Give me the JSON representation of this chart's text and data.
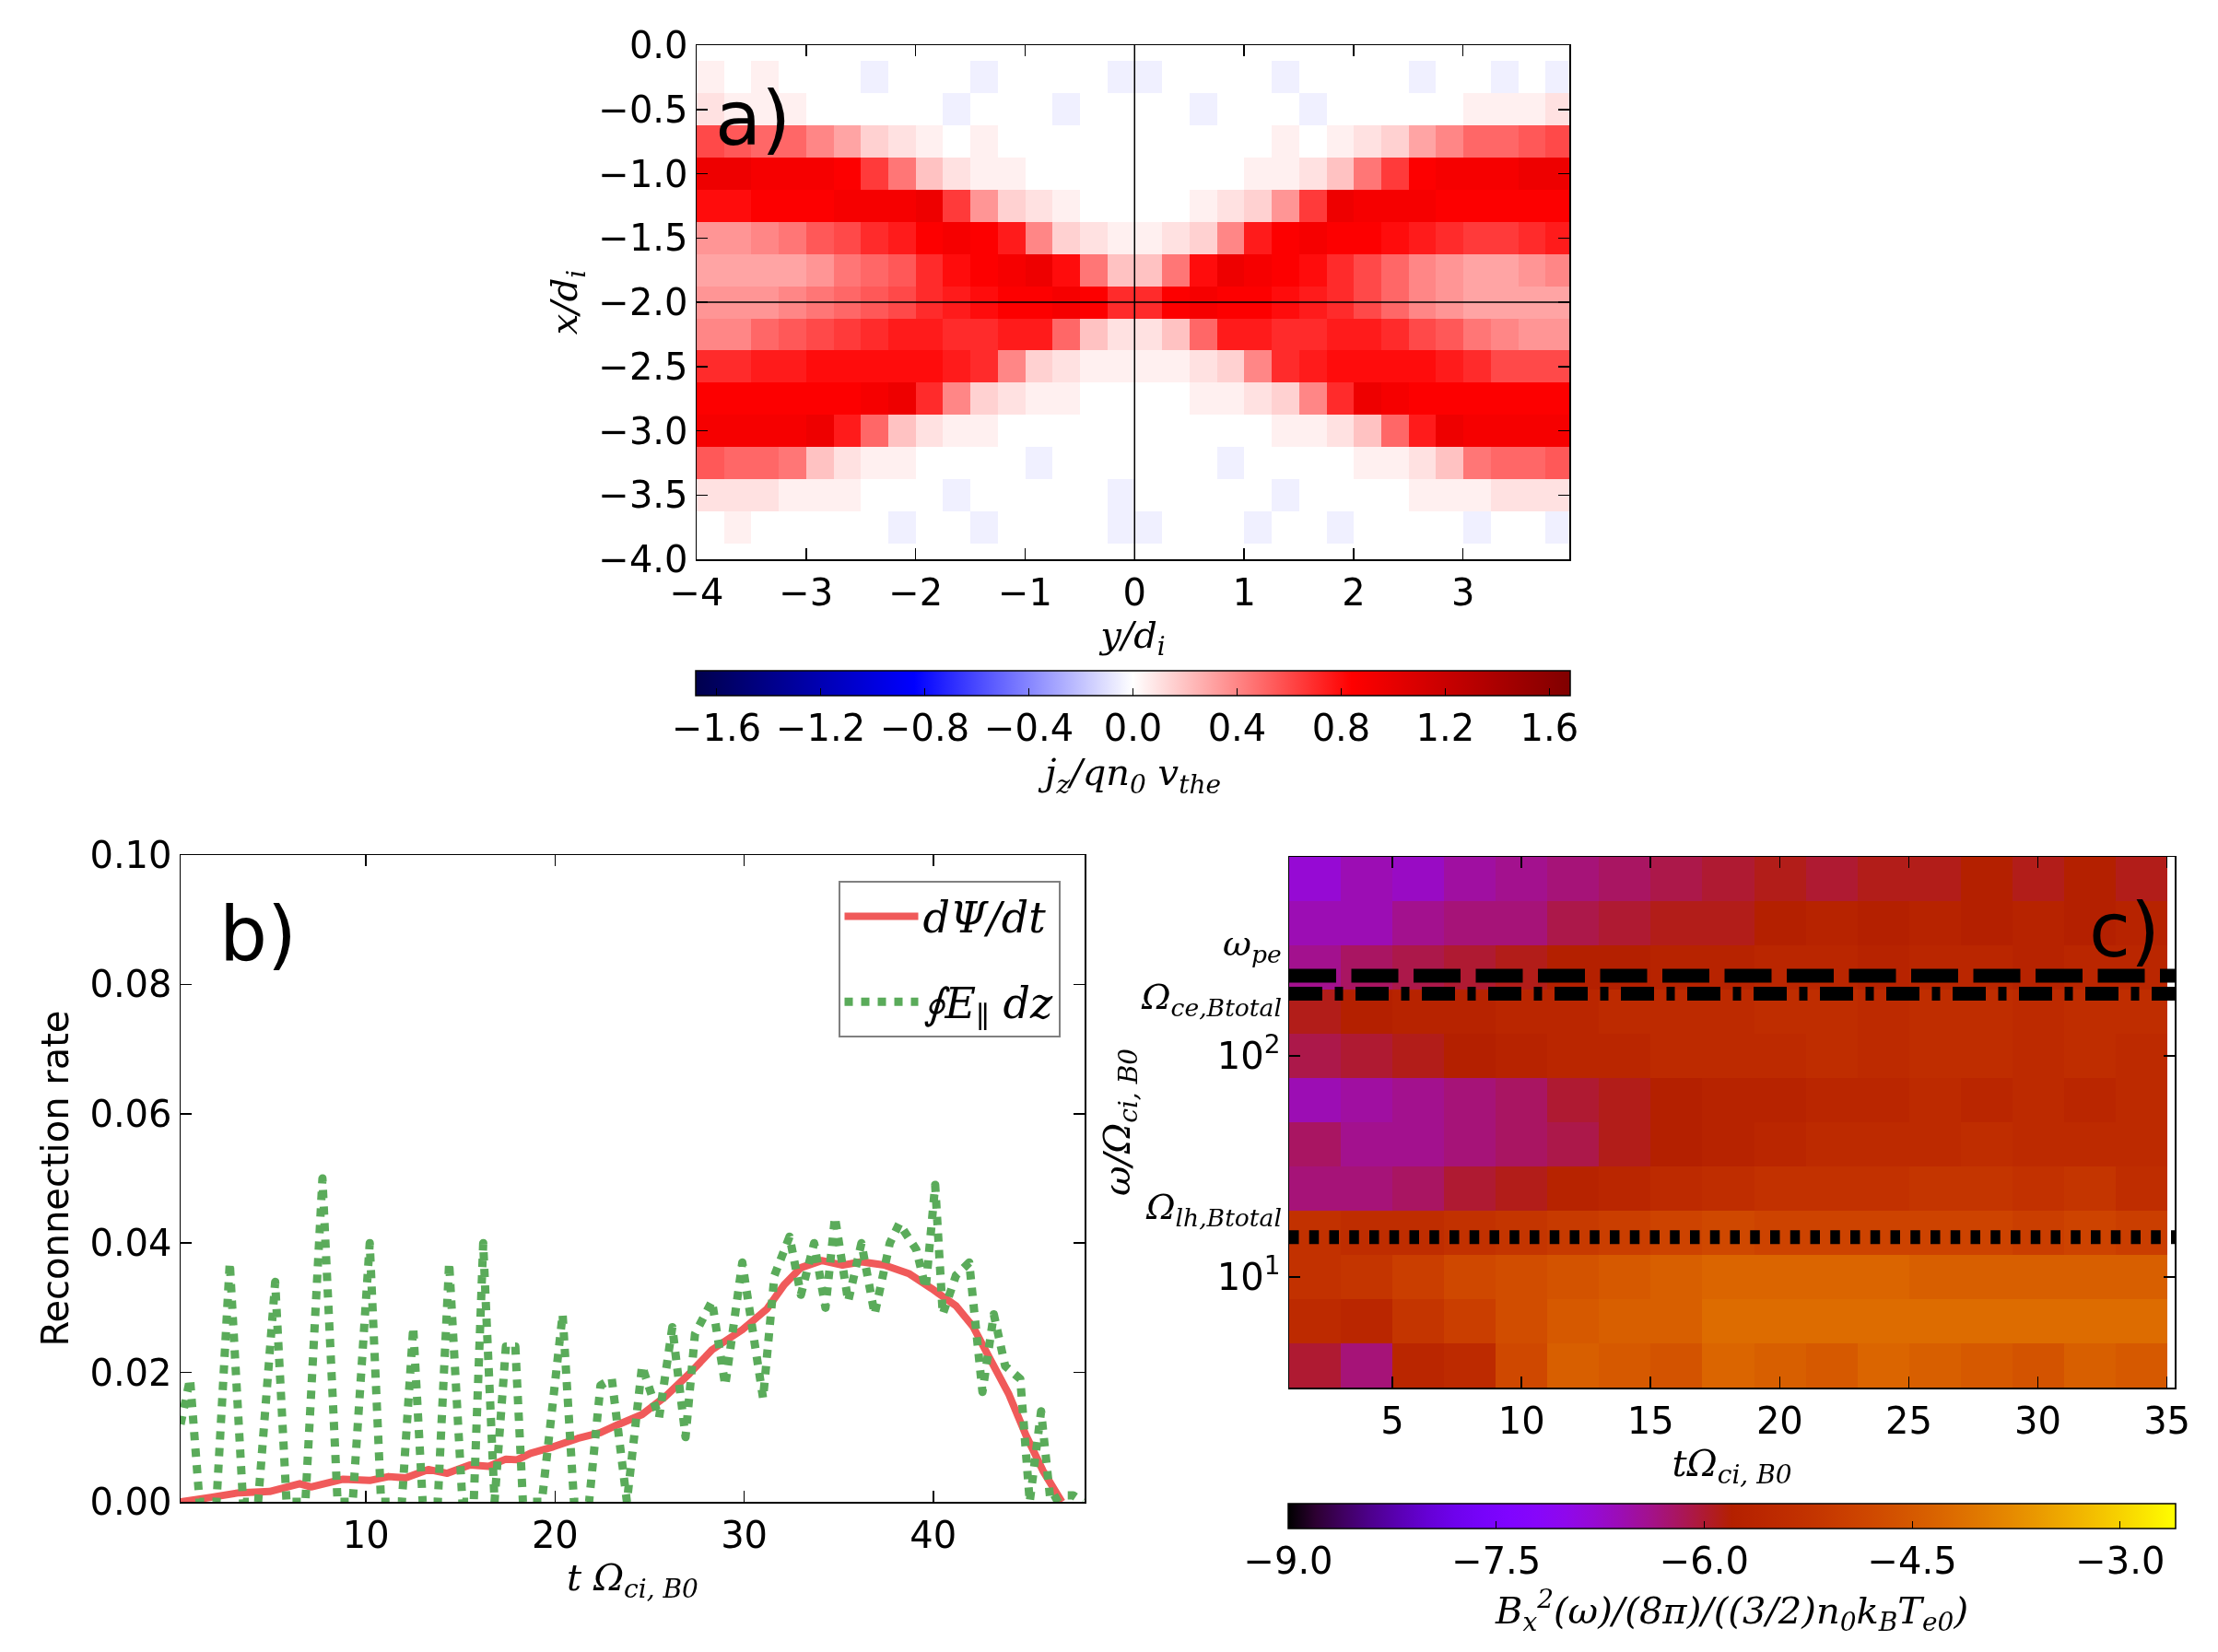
{
  "chart_data": [
    {
      "type": "heatmap",
      "annotations": [
        "a)"
      ],
      "xlabel": "y/d$_{i}$",
      "ylabel": "x/d$_{i}$",
      "clabel": "j$_{z}$/qn$_{0}$ v$_{the}$",
      "x": [
        -3.875,
        -3.625,
        -3.375,
        -3.125,
        -2.875,
        -2.625,
        -2.375,
        -2.125,
        -1.875,
        -1.625,
        -1.375,
        -1.125,
        -0.875,
        -0.625,
        -0.375,
        -0.125,
        0.125,
        0.375,
        0.625,
        0.875,
        1.125,
        1.375,
        1.625,
        1.875,
        2.125,
        2.375,
        2.625,
        2.875,
        3.125,
        3.375,
        3.625,
        3.875
      ],
      "y_categories": [
        "0.0",
        null,
        "−0.5",
        null,
        "−1.0",
        null,
        "−1.5",
        null,
        "−2.0",
        null,
        "−2.5",
        null,
        "−3.0",
        null,
        "−3.5",
        null,
        "−4.0"
      ],
      "cells": [
        [
          0,
          0,
          0,
          0,
          0,
          0,
          0,
          0,
          0,
          0,
          0,
          0,
          0,
          0,
          0,
          0,
          0,
          0,
          0,
          0,
          0,
          0,
          0,
          0,
          0,
          0,
          0,
          0,
          0,
          0,
          0,
          0
        ],
        [
          0.05,
          0,
          0.05,
          0,
          0,
          0,
          -0.05,
          0,
          0,
          0,
          -0.05,
          0,
          0,
          0,
          0,
          -0.05,
          -0.05,
          0,
          0,
          0,
          0,
          -0.05,
          0,
          0,
          0,
          0,
          -0.05,
          0,
          0,
          -0.05,
          0,
          -0.05
        ],
        [
          0.1,
          0.05,
          0.05,
          0.05,
          0,
          0,
          0,
          0,
          0,
          -0.05,
          0,
          0,
          0,
          -0.05,
          0,
          0,
          0,
          0,
          -0.05,
          0,
          0,
          0,
          -0.05,
          0,
          0,
          0,
          0,
          0,
          0.05,
          0.05,
          0.05,
          0.1
        ],
        [
          0.6,
          0.55,
          0.5,
          0.5,
          0.4,
          0.3,
          0.15,
          0.1,
          0.05,
          0,
          0.05,
          0,
          0,
          0,
          0,
          0,
          0,
          0,
          0,
          0,
          0,
          0.05,
          0,
          0.05,
          0.1,
          0.15,
          0.3,
          0.4,
          0.5,
          0.5,
          0.55,
          0.6
        ],
        [
          0.95,
          0.95,
          0.9,
          0.9,
          0.9,
          0.85,
          0.65,
          0.45,
          0.2,
          0.1,
          0.05,
          0.05,
          0,
          0,
          0,
          0,
          0,
          0,
          0,
          0,
          0.05,
          0.05,
          0.1,
          0.2,
          0.45,
          0.65,
          0.85,
          0.9,
          0.9,
          0.9,
          0.95,
          0.95
        ],
        [
          0.8,
          0.8,
          0.85,
          0.85,
          0.85,
          0.9,
          0.9,
          0.9,
          0.95,
          0.65,
          0.35,
          0.15,
          0.1,
          0.05,
          0,
          0,
          0,
          0,
          0.05,
          0.1,
          0.15,
          0.35,
          0.65,
          0.95,
          0.9,
          0.9,
          0.9,
          0.85,
          0.85,
          0.85,
          0.85,
          0.85
        ],
        [
          0.35,
          0.35,
          0.4,
          0.45,
          0.55,
          0.6,
          0.7,
          0.75,
          0.85,
          0.9,
          0.85,
          0.75,
          0.4,
          0.15,
          0.1,
          0.05,
          0.05,
          0.1,
          0.15,
          0.4,
          0.75,
          0.85,
          0.9,
          0.85,
          0.85,
          0.8,
          0.75,
          0.7,
          0.65,
          0.65,
          0.7,
          0.75
        ],
        [
          0.3,
          0.3,
          0.3,
          0.3,
          0.35,
          0.45,
          0.5,
          0.55,
          0.7,
          0.8,
          0.85,
          0.9,
          0.95,
          0.8,
          0.45,
          0.2,
          0.2,
          0.45,
          0.8,
          0.95,
          0.9,
          0.85,
          0.8,
          0.7,
          0.6,
          0.5,
          0.4,
          0.35,
          0.3,
          0.3,
          0.35,
          0.4
        ],
        [
          0.35,
          0.35,
          0.35,
          0.4,
          0.45,
          0.5,
          0.55,
          0.6,
          0.7,
          0.75,
          0.8,
          0.85,
          0.85,
          0.9,
          0.85,
          0.7,
          0.7,
          0.85,
          0.9,
          0.85,
          0.85,
          0.8,
          0.75,
          0.7,
          0.6,
          0.5,
          0.4,
          0.35,
          0.3,
          0.3,
          0.3,
          0.3
        ],
        [
          0.4,
          0.4,
          0.5,
          0.55,
          0.6,
          0.65,
          0.7,
          0.75,
          0.75,
          0.7,
          0.7,
          0.75,
          0.75,
          0.5,
          0.2,
          0.1,
          0.1,
          0.2,
          0.5,
          0.75,
          0.75,
          0.7,
          0.7,
          0.75,
          0.75,
          0.7,
          0.6,
          0.55,
          0.45,
          0.4,
          0.35,
          0.35
        ],
        [
          0.7,
          0.7,
          0.75,
          0.75,
          0.8,
          0.8,
          0.8,
          0.8,
          0.8,
          0.75,
          0.7,
          0.4,
          0.15,
          0.1,
          0.05,
          0.05,
          0.05,
          0.05,
          0.1,
          0.15,
          0.4,
          0.7,
          0.75,
          0.8,
          0.8,
          0.8,
          0.8,
          0.75,
          0.7,
          0.6,
          0.6,
          0.6
        ],
        [
          0.85,
          0.85,
          0.85,
          0.85,
          0.85,
          0.85,
          0.9,
          0.95,
          0.7,
          0.4,
          0.15,
          0.1,
          0.05,
          0.05,
          0,
          0,
          0,
          0,
          0.05,
          0.05,
          0.1,
          0.15,
          0.4,
          0.7,
          0.95,
          0.9,
          0.85,
          0.85,
          0.85,
          0.85,
          0.85,
          0.85
        ],
        [
          0.9,
          0.9,
          0.9,
          0.9,
          0.95,
          0.75,
          0.5,
          0.2,
          0.1,
          0.05,
          0.05,
          0,
          0,
          0,
          0,
          0,
          0,
          0,
          0,
          0,
          0,
          0.05,
          0.05,
          0.1,
          0.2,
          0.5,
          0.75,
          0.95,
          0.9,
          0.9,
          0.9,
          0.9
        ],
        [
          0.55,
          0.5,
          0.5,
          0.45,
          0.2,
          0.1,
          0.05,
          0.05,
          0,
          0,
          0,
          0,
          -0.05,
          0,
          0,
          0,
          0,
          0,
          0,
          -0.05,
          0,
          0,
          0,
          0,
          0.05,
          0.05,
          0.1,
          0.2,
          0.45,
          0.5,
          0.5,
          0.55
        ],
        [
          0.1,
          0.1,
          0.1,
          0.05,
          0.05,
          0.05,
          0,
          0,
          0,
          -0.05,
          0,
          0,
          0,
          0,
          0,
          -0.05,
          0,
          0,
          0,
          0,
          0,
          -0.05,
          0,
          0,
          0,
          0,
          0.05,
          0.05,
          0.05,
          0.1,
          0.1,
          0.1
        ],
        [
          0,
          0.05,
          0,
          0,
          0,
          0,
          0,
          -0.05,
          0,
          0,
          -0.05,
          0,
          0,
          0,
          0,
          -0.05,
          -0.05,
          0,
          0,
          0,
          -0.05,
          0,
          0,
          -0.05,
          0,
          0,
          0,
          0,
          -0.05,
          0,
          0,
          -0.05
        ],
        [
          0,
          0,
          0,
          0,
          0,
          0,
          0,
          0,
          0,
          0,
          0,
          0,
          0,
          0,
          0,
          0,
          0,
          0,
          0,
          0,
          0,
          0,
          0,
          0,
          0,
          0,
          0,
          0,
          0,
          0,
          0,
          0
        ]
      ],
      "clim": [
        -1.68,
        1.68
      ],
      "cticks": [
        -1.6,
        -1.2,
        -0.8,
        -0.4,
        {
          "value": 0,
          "label": "0.0"
        },
        0.4,
        0.8,
        1.2,
        1.6
      ],
      "xlim": [
        -4,
        3.97
      ],
      "xticks": [
        -4,
        -3,
        -2,
        -1,
        0,
        1,
        2,
        3
      ],
      "ref_lines": [
        {
          "axis": "x",
          "value": 0,
          "color": "#000000"
        },
        {
          "axis": "y",
          "value": "−2.0",
          "color": "#000000"
        }
      ]
    },
    {
      "type": "line",
      "annotations": [
        "b)"
      ],
      "xlabel": "t Ω$_{ci, B0}$",
      "ylabel": "Reconnection rate",
      "xlim": [
        0.2,
        48
      ],
      "xticks": [
        10,
        20,
        30,
        40
      ],
      "ylim": [
        0,
        0.1
      ],
      "yticks": [
        {
          "value": 0,
          "label": "0.00"
        },
        0.02,
        0.04,
        0.06,
        0.08,
        {
          "value": 0.1,
          "label": "0.10"
        }
      ],
      "legend": "top right",
      "series": [
        {
          "name": "dΨ/dt",
          "color": "#f05a5a",
          "line_style": "solid",
          "x": [
            0.2,
            1.8,
            3.3,
            4.9,
            6.5,
            7.1,
            8.8,
            10.2,
            11.2,
            12.1,
            13.3,
            14.3,
            15.5,
            16.5,
            17.4,
            18.0,
            18.7,
            19.9,
            21.2,
            22.4,
            23.3,
            24.6,
            25.8,
            27.1,
            28.3,
            29.9,
            31.2,
            32.1,
            33.0,
            34.1,
            35.2,
            36.2,
            37.4,
            38.7,
            39.9,
            41.2,
            42.1,
            43.0,
            44.0,
            44.9,
            45.8,
            46.8
          ],
          "values": [
            0,
            0.0007,
            0.0014,
            0.0016,
            0.0028,
            0.0023,
            0.0035,
            0.0033,
            0.0039,
            0.0037,
            0.005,
            0.0044,
            0.0057,
            0.0055,
            0.0066,
            0.0065,
            0.0075,
            0.0085,
            0.0098,
            0.0107,
            0.0119,
            0.0135,
            0.0162,
            0.0198,
            0.0235,
            0.0266,
            0.0298,
            0.0335,
            0.0362,
            0.0373,
            0.0366,
            0.0371,
            0.0366,
            0.0353,
            0.033,
            0.0303,
            0.0271,
            0.0221,
            0.0166,
            0.0103,
            0.0048,
            0
          ]
        },
        {
          "name": "∮E$_{∥}$ dz",
          "color": "#5aab5a",
          "line_style": "dotted",
          "x": [
            0.2,
            0.7,
            1.2,
            2.1,
            2.8,
            3.5,
            4.3,
            5.2,
            5.8,
            6.8,
            7.7,
            8.5,
            9.3,
            10.2,
            10.8,
            11.9,
            12.5,
            13.0,
            13.8,
            14.4,
            15.1,
            15.7,
            16.2,
            16.8,
            17.4,
            17.9,
            18.3,
            19.3,
            20.4,
            21.0,
            21.8,
            22.4,
            23.0,
            23.8,
            24.6,
            25.5,
            26.2,
            26.9,
            27.4,
            28.3,
            29.0,
            29.9,
            31.0,
            31.6,
            32.4,
            33.0,
            33.7,
            34.3,
            34.8,
            35.5,
            36.2,
            36.9,
            37.7,
            38.2,
            39.1,
            39.6,
            40.1,
            40.5,
            41.2,
            41.9,
            42.6,
            43.2,
            43.8,
            44.6,
            45.1,
            45.7,
            46.2,
            46.8,
            47.4,
            47.9
          ],
          "values": [
            0.012,
            0.019,
            0,
            0,
            0.037,
            0,
            0,
            0.034,
            0,
            0,
            0.05,
            0,
            0,
            0.04,
            0,
            0,
            0.027,
            0,
            0,
            0.037,
            0,
            0,
            0.04,
            0,
            0.024,
            0.024,
            0,
            0,
            0.029,
            0,
            0,
            0.018,
            0.019,
            0,
            0.021,
            0.013,
            0.027,
            0.01,
            0.026,
            0.031,
            0.018,
            0.037,
            0.016,
            0.035,
            0.041,
            0.032,
            0.04,
            0.03,
            0.044,
            0.031,
            0.04,
            0.029,
            0.04,
            0.043,
            0.039,
            0.033,
            0.049,
            0.029,
            0.035,
            0.037,
            0.017,
            0.029,
            0.021,
            0.019,
            0,
            0.014,
            0,
            0.001,
            0.001,
            0
          ]
        }
      ]
    },
    {
      "type": "heatmap",
      "annotations": [
        "c)",
        "ω$_{pe}$",
        "Ω$_{ce,Btotal}$",
        "Ω$_{lh,Btotal}$"
      ],
      "xlabel": "tΩ$_{ci, B0}$",
      "ylabel": "ω/Ω$_{ci, B0}$",
      "clabel": "B$_{x}$$^{2}$(ω)/(8π)/((3/2)n$_{0}$k$_{B}$T$_{e0}$)",
      "x": [
        2,
        4,
        6,
        8,
        10,
        12,
        14,
        16,
        18,
        20,
        22,
        24,
        26,
        28,
        30,
        32,
        34
      ],
      "y_categories": [
        null,
        null,
        null,
        null,
        "10$^{2}$",
        null,
        null,
        null,
        null,
        "10$^{1}$",
        null,
        null
      ],
      "cells": [
        [
          -6.8,
          -6.6,
          -6.7,
          -6.5,
          -6.4,
          -6.3,
          -6.2,
          -6.1,
          -6.0,
          -5.9,
          -6.0,
          -5.9,
          -5.9,
          -5.8,
          -5.9,
          -5.8,
          -5.9
        ],
        [
          -6.6,
          -6.6,
          -6.4,
          -6.3,
          -6.3,
          -6.1,
          -6.0,
          -5.9,
          -5.9,
          -5.8,
          -5.7,
          -5.8,
          -5.7,
          -5.8,
          -5.7,
          -5.8,
          -5.7
        ],
        [
          -6.4,
          -6.2,
          -6.1,
          -6.0,
          -5.9,
          -5.8,
          -5.8,
          -5.7,
          -5.7,
          -5.6,
          -5.6,
          -5.7,
          -5.6,
          -5.6,
          -5.7,
          -5.6,
          -5.6
        ],
        [
          -5.9,
          -5.8,
          -5.7,
          -5.7,
          -5.6,
          -5.6,
          -5.5,
          -5.5,
          -5.5,
          -5.4,
          -5.4,
          -5.5,
          -5.4,
          -5.4,
          -5.5,
          -5.4,
          -5.4
        ],
        [
          -6.1,
          -6.0,
          -5.9,
          -5.8,
          -5.7,
          -5.6,
          -5.6,
          -5.5,
          -5.5,
          -5.5,
          -5.4,
          -5.5,
          -5.4,
          -5.4,
          -5.5,
          -5.4,
          -5.5
        ],
        [
          -6.6,
          -6.5,
          -6.4,
          -6.3,
          -6.2,
          -6.0,
          -5.9,
          -5.8,
          -5.7,
          -5.7,
          -5.6,
          -5.6,
          -5.5,
          -5.6,
          -5.5,
          -5.6,
          -5.5
        ],
        [
          -6.2,
          -6.4,
          -6.4,
          -6.3,
          -6.2,
          -6.1,
          -5.9,
          -5.8,
          -5.7,
          -5.6,
          -5.5,
          -5.5,
          -5.5,
          -5.4,
          -5.5,
          -5.5,
          -5.5
        ],
        [
          -6.3,
          -6.3,
          -6.2,
          -6.0,
          -5.9,
          -5.7,
          -5.6,
          -5.5,
          -5.4,
          -5.3,
          -5.3,
          -5.3,
          -5.2,
          -5.2,
          -5.3,
          -5.2,
          -5.4
        ],
        [
          -5.3,
          -5.4,
          -5.4,
          -5.3,
          -5.2,
          -5.1,
          -5.0,
          -4.9,
          -4.8,
          -4.9,
          -4.9,
          -4.9,
          -4.9,
          -4.9,
          -5.0,
          -4.9,
          -5.0
        ],
        [
          -5.3,
          -5.2,
          -5.0,
          -4.8,
          -4.7,
          -4.6,
          -4.5,
          -4.4,
          -4.3,
          -4.3,
          -4.3,
          -4.3,
          -4.4,
          -4.4,
          -4.4,
          -4.4,
          -4.4
        ],
        [
          -5.5,
          -5.6,
          -5.2,
          -5.0,
          -4.7,
          -4.5,
          -4.4,
          -4.4,
          -4.2,
          -4.2,
          -4.2,
          -4.2,
          -4.2,
          -4.2,
          -4.2,
          -4.2,
          -4.2
        ],
        [
          -6.0,
          -6.3,
          -5.6,
          -5.5,
          -4.8,
          -4.4,
          -4.5,
          -4.6,
          -4.3,
          -4.4,
          -4.5,
          -4.3,
          -4.4,
          -4.5,
          -4.6,
          -4.4,
          -4.5
        ]
      ],
      "clim": [
        -9,
        -2.6
      ],
      "cticks": [
        {
          "value": -9,
          "label": "−9.0"
        },
        -7.5,
        {
          "value": -6,
          "label": "−6.0"
        },
        -4.5,
        {
          "value": -3,
          "label": "−3.0"
        }
      ],
      "xlim": [
        1,
        35.3
      ],
      "xticks": [
        5,
        10,
        15,
        20,
        25,
        30,
        35
      ]
    }
  ]
}
